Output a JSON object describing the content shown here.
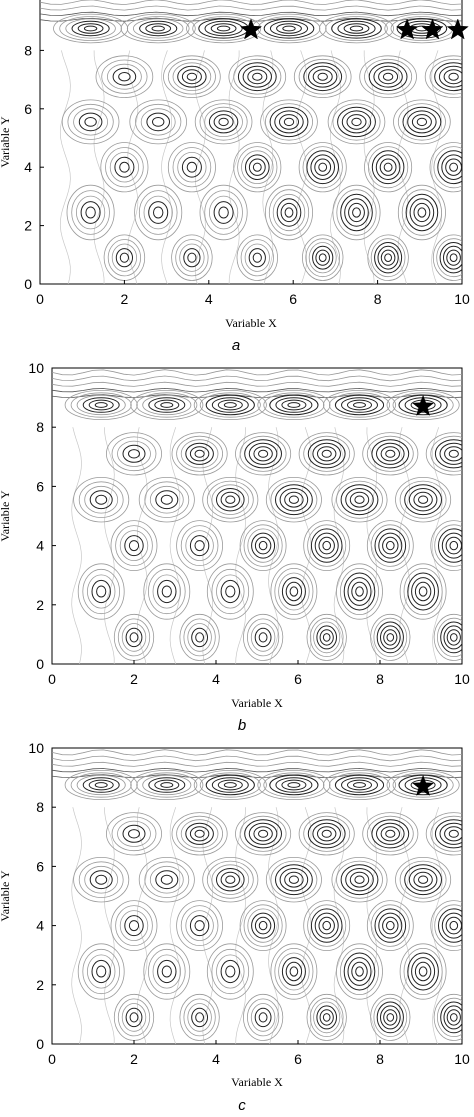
{
  "colors": {
    "axis": "#000000",
    "contour_dark": "#1a1a1a",
    "contour_light": "#9a9a9a",
    "marker": "#000000",
    "background": "#ffffff"
  },
  "chart_data": [
    {
      "type": "contour",
      "caption": "a",
      "xlabel": "Variable X",
      "ylabel": "Variable Y",
      "xlim": [
        0,
        10
      ],
      "ylim": [
        0,
        10
      ],
      "xticks": [
        0,
        2,
        4,
        6,
        8,
        10
      ],
      "yticks": [
        0,
        2,
        4,
        6,
        8
      ],
      "markers": [
        {
          "x": 5.0,
          "y": 8.7
        },
        {
          "x": 8.7,
          "y": 8.7
        },
        {
          "x": 9.3,
          "y": 8.7
        },
        {
          "x": 9.9,
          "y": 8.7
        }
      ]
    },
    {
      "type": "contour",
      "caption": "b",
      "xlabel": "Variable X",
      "ylabel": "Variable Y",
      "xlim": [
        0,
        10
      ],
      "ylim": [
        0,
        10
      ],
      "xticks": [
        0,
        2,
        4,
        6,
        8,
        10
      ],
      "yticks": [
        0,
        2,
        4,
        6,
        8,
        10
      ],
      "markers": [
        {
          "x": 9.05,
          "y": 8.7
        }
      ]
    },
    {
      "type": "contour",
      "caption": "c",
      "xlabel": "Variable X",
      "ylabel": "Variable Y",
      "xlim": [
        0,
        10
      ],
      "ylim": [
        0,
        10
      ],
      "xticks": [
        0,
        2,
        4,
        6,
        8,
        10
      ],
      "yticks": [
        0,
        2,
        4,
        6,
        8,
        10
      ],
      "markers": [
        {
          "x": 9.05,
          "y": 8.7
        }
      ]
    }
  ]
}
